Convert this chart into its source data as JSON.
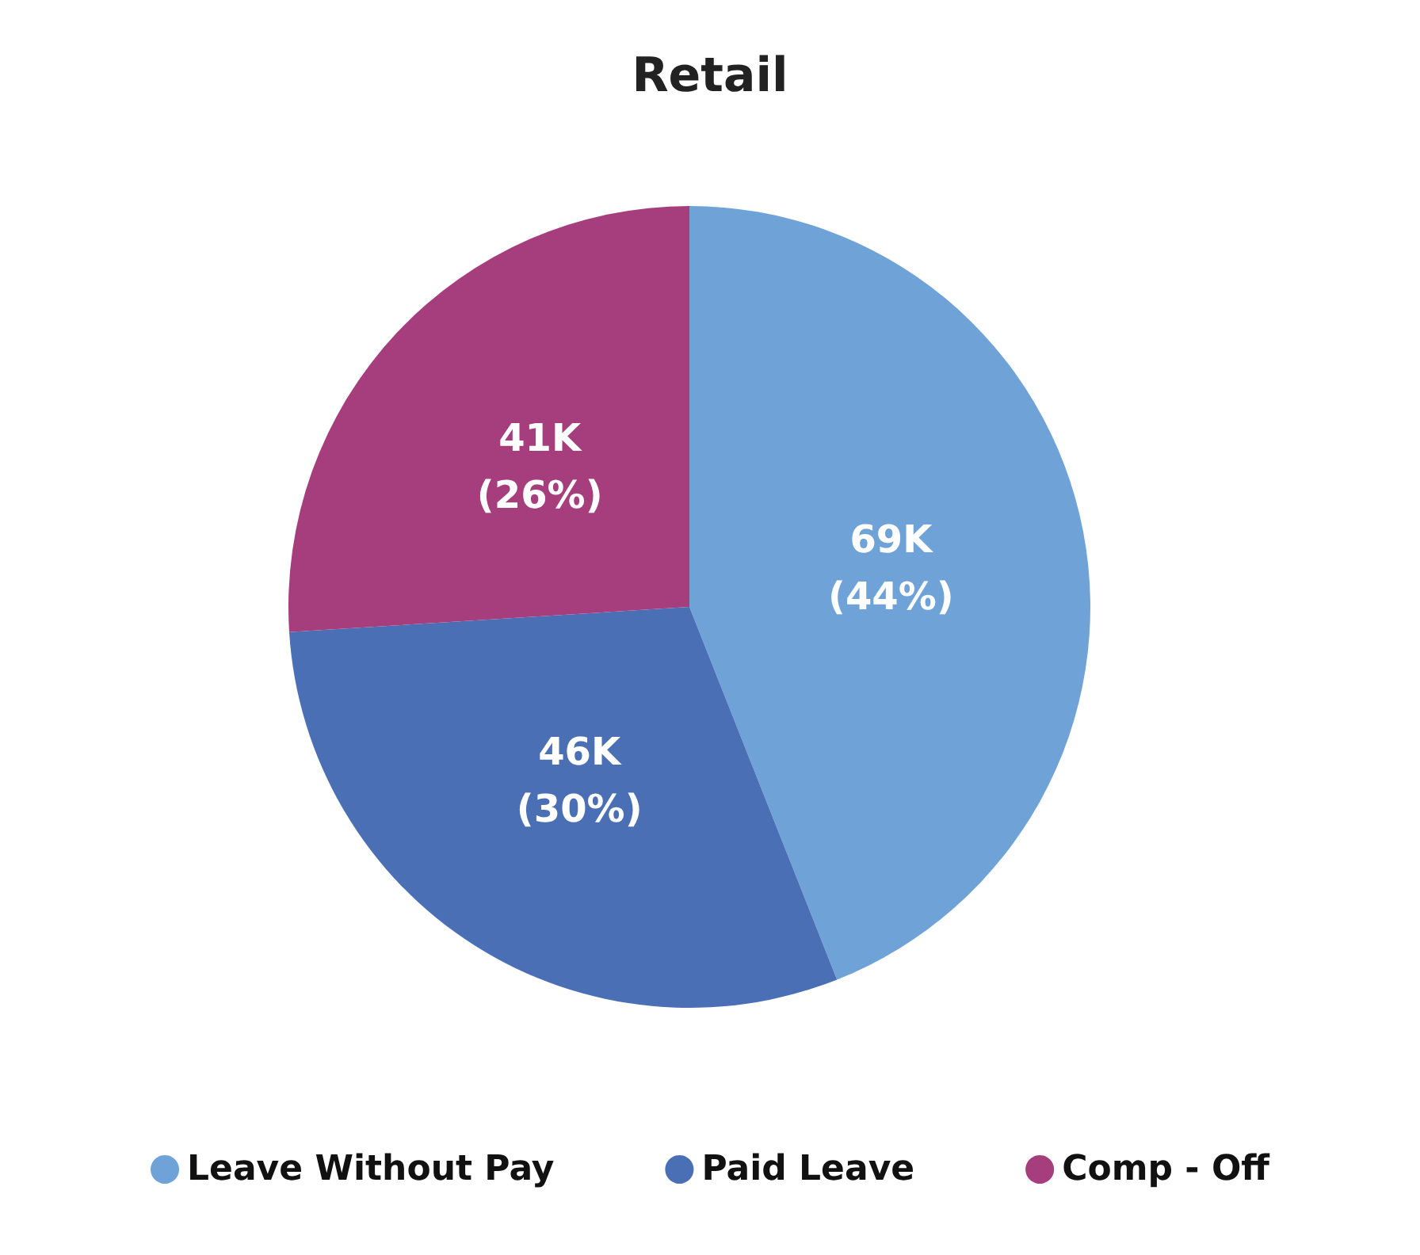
{
  "chart_data": {
    "type": "pie",
    "title": "Retail",
    "categories": [
      "Leave Without Pay",
      "Paid Leave",
      "Comp - Off"
    ],
    "values": [
      44,
      30,
      26
    ],
    "colors": [
      "#6fa3d8",
      "#4a6fb5",
      "#a63e7d"
    ],
    "value_labels": [
      "69K\n(44%)",
      "46K\n(30%)",
      "41K\n(26%)"
    ],
    "legend": "bottom"
  }
}
